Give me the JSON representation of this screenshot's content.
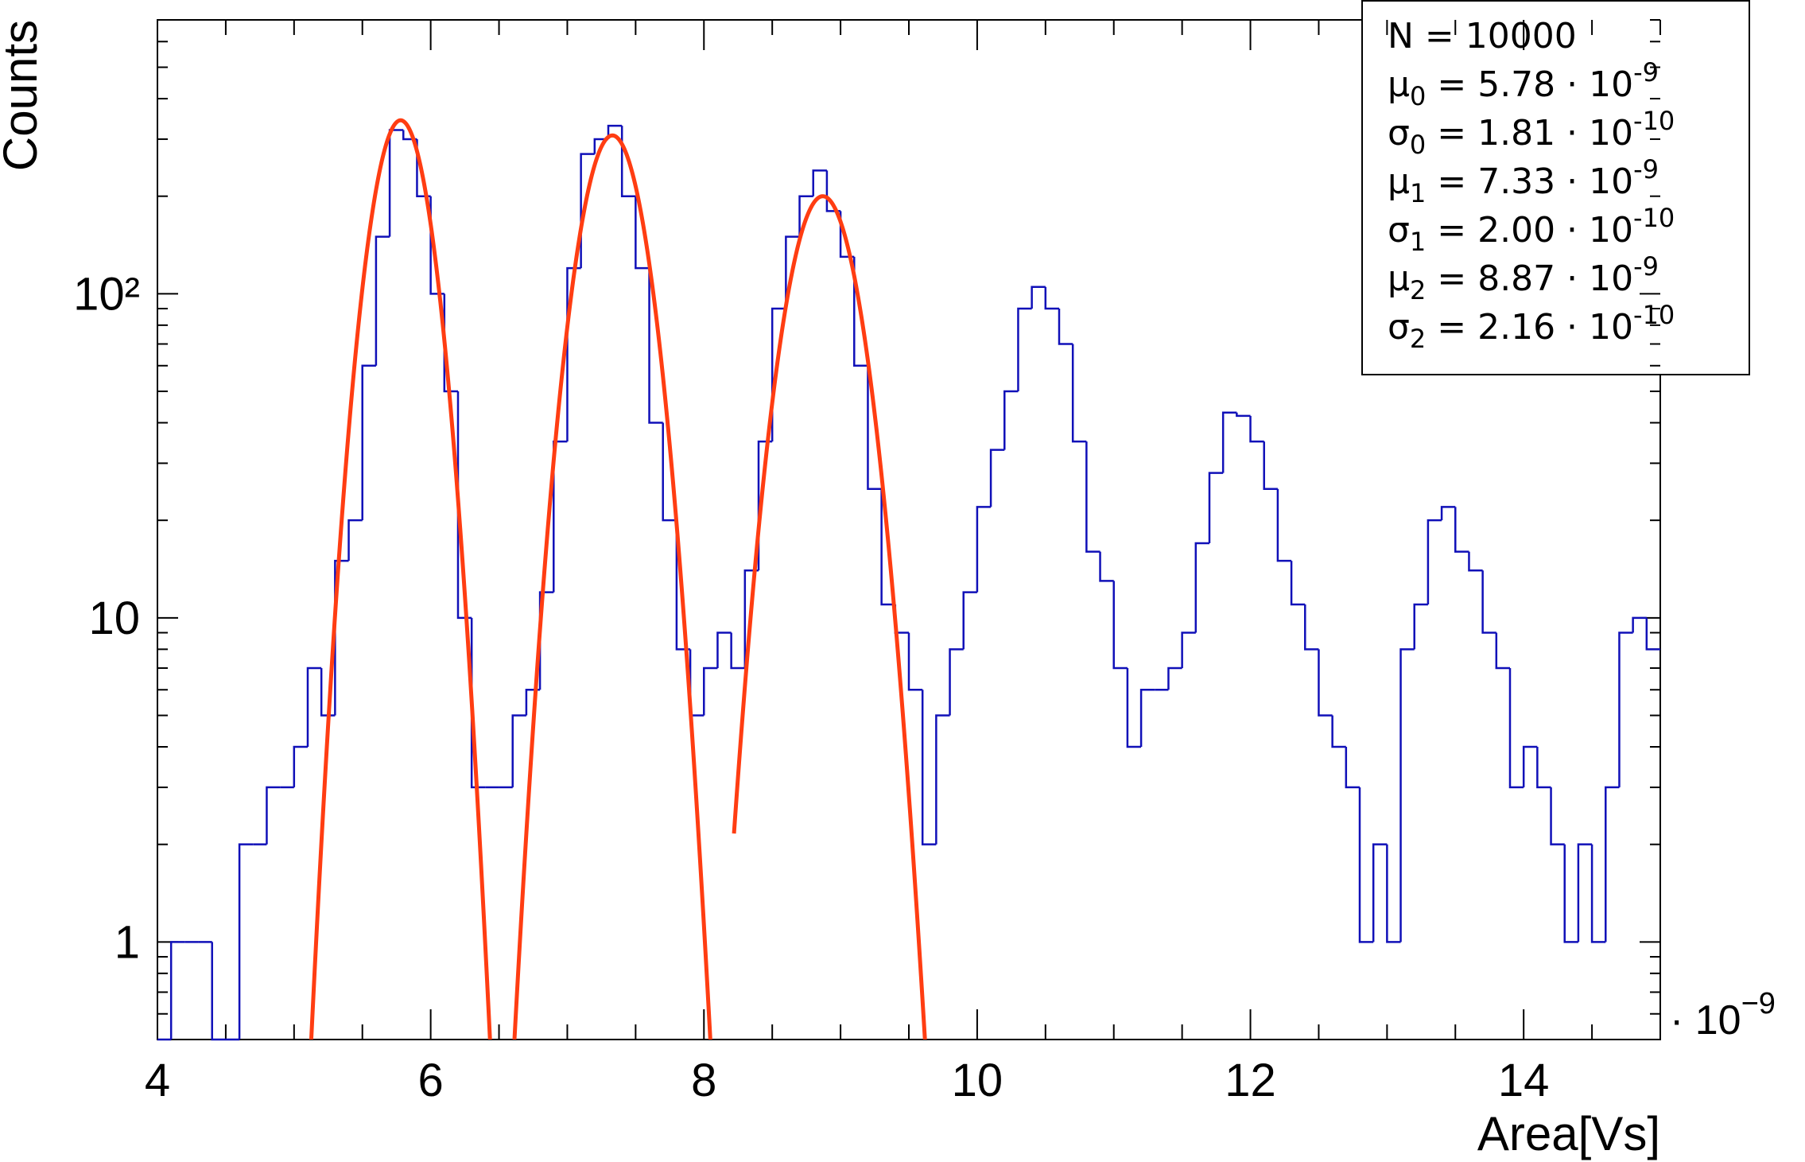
{
  "chart_data": {
    "type": "histogram",
    "y_label": "Counts",
    "x_label": "Area[Vs]",
    "x_multiplier": "· 10",
    "x_multiplier_exp": "−9",
    "xlim": [
      4,
      15
    ],
    "xticks": [
      4,
      6,
      8,
      10,
      12,
      14
    ],
    "xminorticks": [
      4.5,
      5,
      5.5,
      6.5,
      7,
      7.5,
      8.5,
      9,
      9.5,
      10.5,
      11,
      11.5,
      12.5,
      13,
      13.5,
      14.5,
      15
    ],
    "ylim": [
      0.5,
      700
    ],
    "log_y": true,
    "yticks": [
      1,
      10,
      {
        "value": 100,
        "label": "10²"
      }
    ],
    "yminorticks": [
      0.6,
      0.7,
      0.8,
      0.9,
      2,
      3,
      4,
      5,
      6,
      7,
      8,
      9,
      20,
      30,
      40,
      50,
      60,
      70,
      80,
      90,
      200,
      300,
      400,
      500,
      600,
      700
    ],
    "color": "#1010b8",
    "bins": [
      4.0,
      4.1,
      4.2,
      4.3,
      4.4,
      4.5,
      4.6,
      4.7,
      4.8,
      4.9,
      5.0,
      5.1,
      5.2,
      5.3,
      5.4,
      5.5,
      5.6,
      5.7,
      5.8,
      5.9,
      6.0,
      6.1,
      6.2,
      6.3,
      6.4,
      6.5,
      6.6,
      6.7,
      6.8,
      6.9,
      7.0,
      7.1,
      7.2,
      7.3,
      7.4,
      7.5,
      7.6,
      7.7,
      7.8,
      7.9,
      8.0,
      8.1,
      8.2,
      8.3,
      8.4,
      8.5,
      8.6,
      8.7,
      8.8,
      8.9,
      9.0,
      9.1,
      9.2,
      9.3,
      9.4,
      9.5,
      9.6,
      9.7,
      9.8,
      9.9,
      10.0,
      10.1,
      10.2,
      10.3,
      10.4,
      10.5,
      10.6,
      10.7,
      10.8,
      10.9,
      11.0,
      11.1,
      11.2,
      11.3,
      11.4,
      11.5,
      11.6,
      11.7,
      11.8,
      11.9,
      12.0,
      12.1,
      12.2,
      12.3,
      12.4,
      12.5,
      12.6,
      12.7,
      12.8,
      12.9,
      13.0,
      13.1,
      13.2,
      13.3,
      13.4,
      13.5,
      13.6,
      13.7,
      13.8,
      13.9,
      14.0,
      14.1,
      14.2,
      14.3,
      14.4,
      14.5,
      14.6,
      14.7,
      14.8,
      14.9,
      15.0
    ],
    "values": [
      0,
      1,
      1,
      1,
      0,
      0,
      2,
      2,
      3,
      3,
      4,
      7,
      5,
      15,
      20,
      60,
      150,
      320,
      300,
      200,
      100,
      50,
      10,
      3,
      3,
      3,
      5,
      6,
      12,
      35,
      120,
      270,
      300,
      330,
      200,
      120,
      40,
      20,
      8,
      5,
      7,
      9,
      7,
      14,
      35,
      90,
      150,
      200,
      240,
      180,
      130,
      60,
      25,
      11,
      9,
      6,
      2,
      5,
      8,
      12,
      22,
      33,
      50,
      90,
      105,
      90,
      70,
      35,
      16,
      13,
      7,
      4,
      6,
      6,
      7,
      9,
      17,
      28,
      43,
      42,
      35,
      25,
      15,
      11,
      8,
      5,
      4,
      3,
      1,
      2,
      1,
      8,
      11,
      20,
      22,
      16,
      14,
      9,
      7,
      3,
      4,
      3,
      2,
      1,
      2,
      1,
      3,
      9,
      10,
      8
    ],
    "fits": [
      {
        "color": "#ff3d12",
        "amplitude": 343,
        "mean": 5.78,
        "sigma": 0.181,
        "xrange": [
          5.0,
          6.6
        ]
      },
      {
        "color": "#ff3d12",
        "amplitude": 308,
        "mean": 7.33,
        "sigma": 0.2,
        "xrange": [
          6.5,
          8.2
        ]
      },
      {
        "color": "#ff3d12",
        "amplitude": 200,
        "mean": 8.87,
        "sigma": 0.216,
        "xrange": [
          8.22,
          9.7
        ]
      }
    ],
    "stats": [
      {
        "text": "N = 10000"
      },
      {
        "symbol": "μ",
        "sub": "0",
        "text": " = 5.78 · 10",
        "sup": "-9"
      },
      {
        "symbol": "σ",
        "sub": "0",
        "text": " = 1.81 · 10",
        "sup": "-10"
      },
      {
        "symbol": "μ",
        "sub": "1",
        "text": " = 7.33 · 10",
        "sup": "-9"
      },
      {
        "symbol": "σ",
        "sub": "1",
        "text": " = 2.00 · 10",
        "sup": "-10"
      },
      {
        "symbol": "μ",
        "sub": "2",
        "text": " = 8.87 · 10",
        "sup": "-9"
      },
      {
        "symbol": "σ",
        "sub": "2",
        "text": " = 2.16 · 10",
        "sup": "-10"
      }
    ]
  }
}
